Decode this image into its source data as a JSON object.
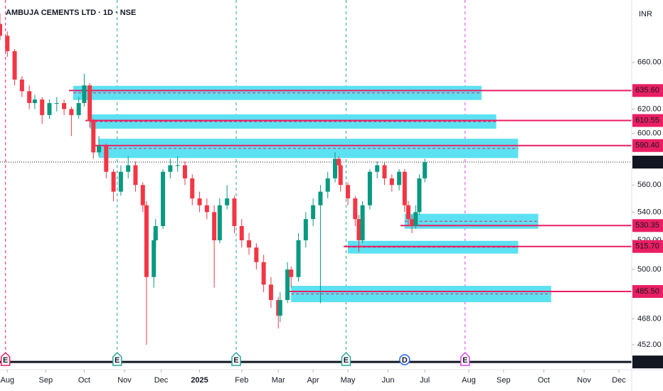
{
  "chart_data": {
    "type": "candlestick",
    "title": "AMBUJA CEMENTS LTD · 1D · NSE",
    "currency": "INR",
    "x": [
      0,
      4,
      8,
      12,
      16,
      19,
      23,
      27,
      31,
      35,
      39,
      43,
      46,
      49,
      51,
      54,
      58,
      62,
      66,
      70,
      74,
      78,
      80,
      84,
      85,
      89,
      93,
      97,
      101,
      105,
      109,
      113,
      117,
      120,
      124,
      128,
      132,
      136,
      140,
      144,
      148,
      152,
      153,
      157,
      159,
      163,
      167,
      171,
      175,
      179,
      183,
      185,
      186,
      190,
      194,
      196,
      198,
      202,
      206,
      210,
      214,
      218,
      221,
      223,
      225,
      227,
      229,
      232
    ],
    "open": [
      695,
      684,
      670,
      645,
      635,
      625,
      628,
      615,
      625,
      625,
      620,
      615,
      625,
      640,
      610,
      585,
      590,
      570,
      555,
      570,
      575,
      560,
      545,
      495,
      520,
      530,
      570,
      575,
      575,
      565,
      550,
      545,
      540,
      520,
      545,
      550,
      530,
      520,
      515,
      505,
      490,
      480,
      470,
      480,
      500,
      495,
      520,
      535,
      545,
      555,
      565,
      580,
      575,
      560,
      550,
      535,
      520,
      545,
      570,
      575,
      565,
      560,
      570,
      545,
      535,
      530,
      540,
      565
    ],
    "high": [
      705,
      688,
      672,
      648,
      640,
      632,
      630,
      628,
      630,
      628,
      622,
      630,
      650,
      642,
      612,
      598,
      592,
      572,
      575,
      582,
      578,
      562,
      548,
      525,
      535,
      572,
      580,
      582,
      578,
      568,
      555,
      550,
      545,
      550,
      560,
      552,
      535,
      525,
      518,
      510,
      495,
      482,
      485,
      505,
      502,
      525,
      540,
      550,
      560,
      570,
      585,
      582,
      578,
      562,
      552,
      538,
      548,
      572,
      578,
      577,
      568,
      572,
      572,
      548,
      538,
      545,
      568,
      580
    ],
    "low": [
      680,
      665,
      640,
      630,
      620,
      620,
      608,
      612,
      618,
      615,
      598,
      612,
      622,
      605,
      580,
      582,
      565,
      548,
      552,
      565,
      555,
      540,
      452,
      488,
      515,
      528,
      565,
      570,
      560,
      545,
      540,
      535,
      488,
      518,
      542,
      525,
      515,
      510,
      500,
      485,
      475,
      462,
      466,
      478,
      488,
      492,
      515,
      530,
      478,
      550,
      562,
      570,
      555,
      545,
      530,
      512,
      518,
      542,
      565,
      560,
      555,
      556,
      540,
      530,
      525,
      528,
      538,
      562
    ],
    "close": [
      684,
      670,
      645,
      635,
      625,
      628,
      615,
      625,
      625,
      620,
      615,
      625,
      640,
      610,
      585,
      590,
      570,
      555,
      570,
      575,
      560,
      545,
      495,
      520,
      530,
      570,
      575,
      575,
      565,
      550,
      545,
      540,
      520,
      545,
      550,
      530,
      520,
      515,
      505,
      490,
      480,
      470,
      480,
      500,
      495,
      520,
      535,
      545,
      555,
      565,
      580,
      575,
      560,
      550,
      535,
      520,
      545,
      570,
      575,
      565,
      560,
      570,
      545,
      535,
      530,
      540,
      565,
      577.45
    ],
    "up_color": "#089981",
    "down_color": "#f23645",
    "log_scale": true,
    "ylim": [
      437.2,
      717.6
    ],
    "yticks": [
      {
        "value": 660,
        "label": "660.00"
      },
      {
        "value": 620,
        "label": "620.00"
      },
      {
        "value": 600,
        "label": "600.00"
      },
      {
        "value": 560,
        "label": "560.00"
      },
      {
        "value": 540,
        "label": "540.00"
      },
      {
        "value": 520,
        "label": "520.00"
      },
      {
        "value": 500,
        "label": "500.00"
      },
      {
        "value": 468,
        "label": "468.00"
      },
      {
        "value": 452,
        "label": "452.00"
      }
    ],
    "xlim": [
      0,
      345
    ],
    "xticks": [
      {
        "value": 4,
        "label": "Aug"
      },
      {
        "value": 25,
        "label": "Sep"
      },
      {
        "value": 46,
        "label": "Oct"
      },
      {
        "value": 68,
        "label": "Nov"
      },
      {
        "value": 88,
        "label": "Dec"
      },
      {
        "value": 109,
        "label": "2025"
      },
      {
        "value": 132,
        "label": "Feb"
      },
      {
        "value": 152,
        "label": "Mar"
      },
      {
        "value": 171,
        "label": "Apr"
      },
      {
        "value": 190,
        "label": "May"
      },
      {
        "value": 212,
        "label": "Jun"
      },
      {
        "value": 232,
        "label": "Jul"
      },
      {
        "value": 256,
        "label": "Aug"
      },
      {
        "value": 275,
        "label": "Sep"
      },
      {
        "value": 297,
        "label": "Oct"
      },
      {
        "value": 319,
        "label": "Nov"
      },
      {
        "value": 338,
        "label": "Dec"
      }
    ],
    "zone_color": "#5ce1f2",
    "level_color": "#e91e63",
    "zones": [
      {
        "x": [
          40,
          263
        ],
        "range": [
          639.6,
          627.6
        ],
        "level": 635.6,
        "level_label": "635.60"
      },
      {
        "x": [
          49,
          271
        ],
        "range": [
          615.6,
          603.9
        ],
        "level": 610.55
      },
      {
        "x": [
          54,
          283
        ],
        "range": [
          595.8,
          580.6
        ],
        "level": 590.4,
        "level_label": "590.40"
      },
      {
        "x": [
          221,
          294
        ],
        "range": [
          538.8,
          528.1
        ],
        "level": 530.35
      },
      {
        "x": [
          190,
          283
        ],
        "range": [
          519.6,
          510.8
        ],
        "level": 515.7,
        "level_label": "515.70"
      },
      {
        "x": [
          159,
          301
        ],
        "range": [
          489.2,
          478.6
        ],
        "level": 485.5,
        "level_label": "485.50"
      }
    ],
    "last_price": 577.45,
    "floor_level": 441.75,
    "events": [
      {
        "x": 3,
        "label": "E",
        "color": "#e91e63",
        "dashed_line": true
      },
      {
        "x": 64,
        "label": "E",
        "color": "#26a69a",
        "dashed_line": true
      },
      {
        "x": 129,
        "label": "E",
        "color": "#26a69a",
        "dashed_line": true
      },
      {
        "x": 189,
        "label": "E",
        "color": "#26a69a",
        "dashed_line": true
      },
      {
        "x": 221,
        "label": "D",
        "color": "#2962ff",
        "dashed_line": false
      },
      {
        "x": 254,
        "label": "E",
        "color": "#e040fb",
        "dashed_line": true
      }
    ]
  }
}
